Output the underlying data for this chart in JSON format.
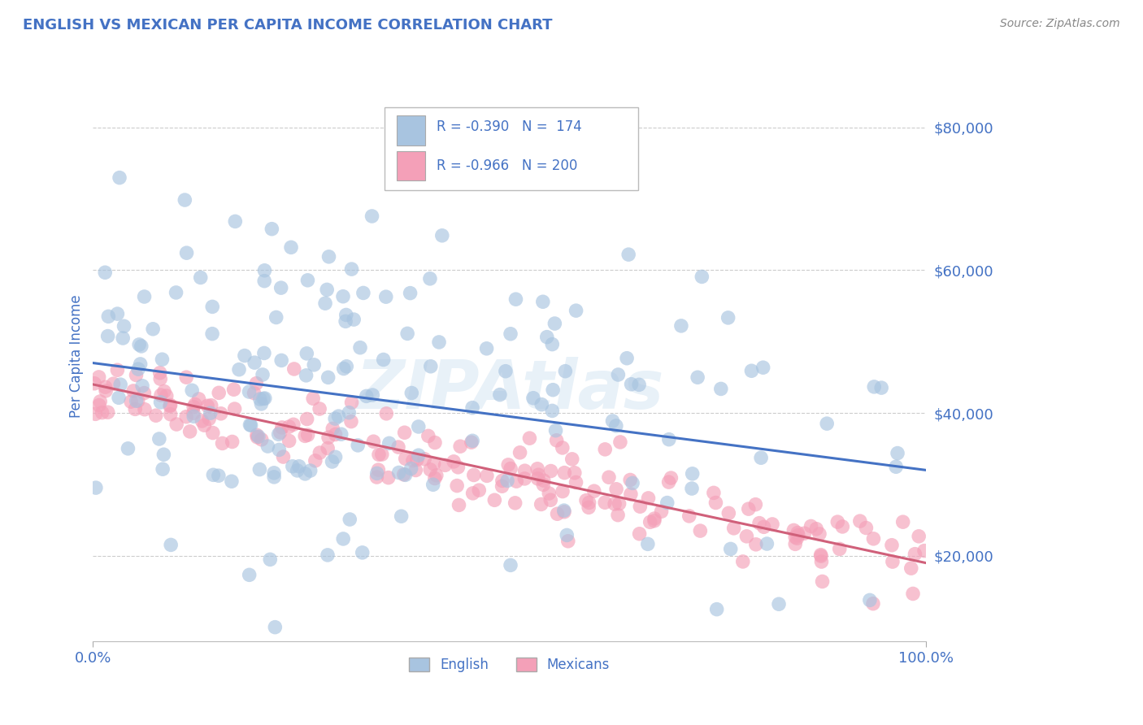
{
  "title": "ENGLISH VS MEXICAN PER CAPITA INCOME CORRELATION CHART",
  "source": "Source: ZipAtlas.com",
  "ylabel": "Per Capita Income",
  "xlim": [
    0,
    1.0
  ],
  "ylim": [
    8000,
    88000
  ],
  "yticks": [
    20000,
    40000,
    60000,
    80000
  ],
  "ytick_labels": [
    "$20,000",
    "$40,000",
    "$60,000",
    "$80,000"
  ],
  "xticks": [
    0.0,
    1.0
  ],
  "xtick_labels": [
    "0.0%",
    "100.0%"
  ],
  "english_color": "#a8c4e0",
  "mexican_color": "#f4a0b8",
  "english_line_color": "#4472c4",
  "mexican_line_color": "#d0607a",
  "english_R": -0.39,
  "english_N": 174,
  "mexican_R": -0.966,
  "mexican_N": 200,
  "grid_color": "#cccccc",
  "title_color": "#4472c4",
  "tick_color": "#4472c4",
  "watermark": "ZIPAtlas",
  "english_intercept": 47000,
  "english_slope": -15000,
  "mexican_intercept": 44000,
  "mexican_slope": -25000
}
